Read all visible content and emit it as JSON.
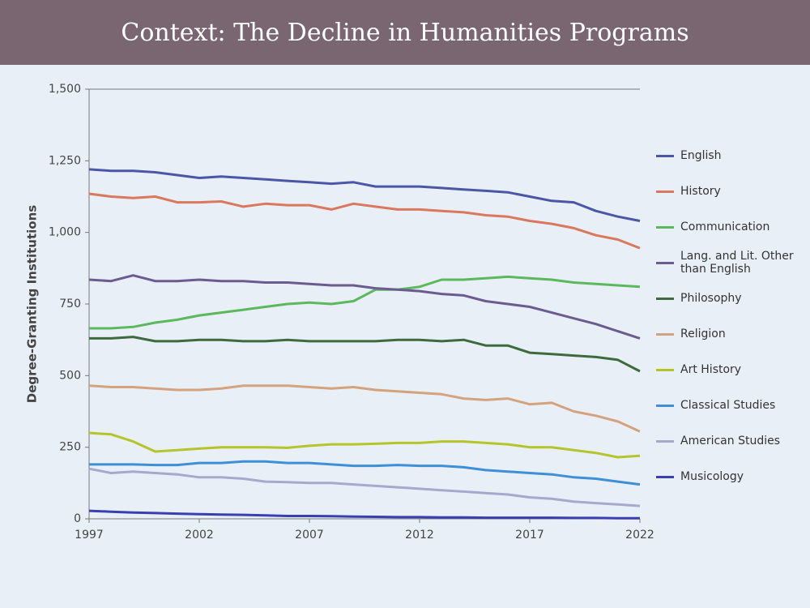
{
  "chart_data": {
    "type": "line",
    "title": "Context: The Decline in Humanities Programs",
    "y_label": "Degree-Granting Institutions",
    "x": [
      1997,
      1998,
      1999,
      2000,
      2001,
      2002,
      2003,
      2004,
      2005,
      2006,
      2007,
      2008,
      2009,
      2010,
      2011,
      2012,
      2013,
      2014,
      2015,
      2016,
      2017,
      2018,
      2019,
      2020,
      2021,
      2022
    ],
    "xlim": [
      1997,
      2022
    ],
    "xticks": [
      1997,
      2002,
      2007,
      2012,
      2017,
      2022
    ],
    "ylim": [
      0,
      1500
    ],
    "yticks": [
      0,
      250,
      500,
      750,
      {
        "value": 1000,
        "label": "1,000"
      },
      {
        "value": 1250,
        "label": "1,250"
      },
      {
        "value": 1500,
        "label": "1,500"
      }
    ],
    "grid": false,
    "series": [
      {
        "name": "English",
        "color": "#4a56a6",
        "values": [
          1220,
          1215,
          1215,
          1210,
          1200,
          1190,
          1195,
          1190,
          1185,
          1180,
          1175,
          1170,
          1175,
          1160,
          1160,
          1160,
          1155,
          1150,
          1145,
          1140,
          1125,
          1110,
          1105,
          1075,
          1055,
          1040
        ]
      },
      {
        "name": "History",
        "color": "#d9785c",
        "values": [
          1135,
          1125,
          1120,
          1125,
          1105,
          1105,
          1108,
          1090,
          1100,
          1095,
          1095,
          1080,
          1100,
          1090,
          1080,
          1080,
          1075,
          1070,
          1060,
          1055,
          1040,
          1030,
          1015,
          990,
          975,
          945
        ]
      },
      {
        "name": "Communication",
        "color": "#5cb85c",
        "values": [
          665,
          665,
          670,
          685,
          695,
          710,
          720,
          730,
          740,
          750,
          755,
          750,
          760,
          800,
          800,
          810,
          835,
          835,
          840,
          845,
          840,
          835,
          825,
          820,
          815,
          810
        ]
      },
      {
        "name": "Lang. and Lit. Other than English",
        "color": "#6a5c8e",
        "values": [
          835,
          830,
          850,
          830,
          830,
          835,
          830,
          830,
          825,
          825,
          820,
          815,
          815,
          805,
          800,
          795,
          785,
          780,
          760,
          750,
          740,
          720,
          700,
          680,
          655,
          630
        ]
      },
      {
        "name": "Philosophy",
        "color": "#3d6b3d",
        "values": [
          630,
          630,
          635,
          620,
          620,
          625,
          625,
          620,
          620,
          625,
          620,
          620,
          620,
          620,
          625,
          625,
          620,
          625,
          605,
          605,
          580,
          575,
          570,
          565,
          555,
          515
        ]
      },
      {
        "name": "Religion",
        "color": "#d4a27c",
        "values": [
          465,
          460,
          460,
          455,
          450,
          450,
          455,
          465,
          465,
          465,
          460,
          455,
          460,
          450,
          445,
          440,
          435,
          420,
          415,
          420,
          400,
          405,
          375,
          360,
          340,
          305
        ]
      },
      {
        "name": "Art History",
        "color": "#b5c42a",
        "values": [
          300,
          295,
          270,
          235,
          240,
          245,
          250,
          250,
          250,
          248,
          255,
          260,
          260,
          262,
          265,
          265,
          270,
          270,
          265,
          260,
          250,
          250,
          240,
          230,
          215,
          220
        ]
      },
      {
        "name": "Classical Studies",
        "color": "#3d8fd8",
        "values": [
          190,
          190,
          190,
          188,
          188,
          195,
          195,
          200,
          200,
          195,
          195,
          190,
          185,
          185,
          188,
          185,
          185,
          180,
          170,
          165,
          160,
          155,
          145,
          140,
          130,
          120
        ]
      },
      {
        "name": "American Studies",
        "color": "#a8a8cc",
        "values": [
          175,
          160,
          165,
          160,
          155,
          145,
          145,
          140,
          130,
          128,
          125,
          125,
          120,
          115,
          110,
          105,
          100,
          95,
          90,
          85,
          75,
          70,
          60,
          55,
          50,
          45
        ]
      },
      {
        "name": "Musicology",
        "color": "#3a3fb0",
        "values": [
          28,
          25,
          22,
          20,
          18,
          16,
          15,
          14,
          12,
          10,
          10,
          9,
          8,
          7,
          6,
          6,
          5,
          5,
          4,
          4,
          4,
          4,
          3,
          3,
          2,
          2
        ]
      }
    ]
  }
}
